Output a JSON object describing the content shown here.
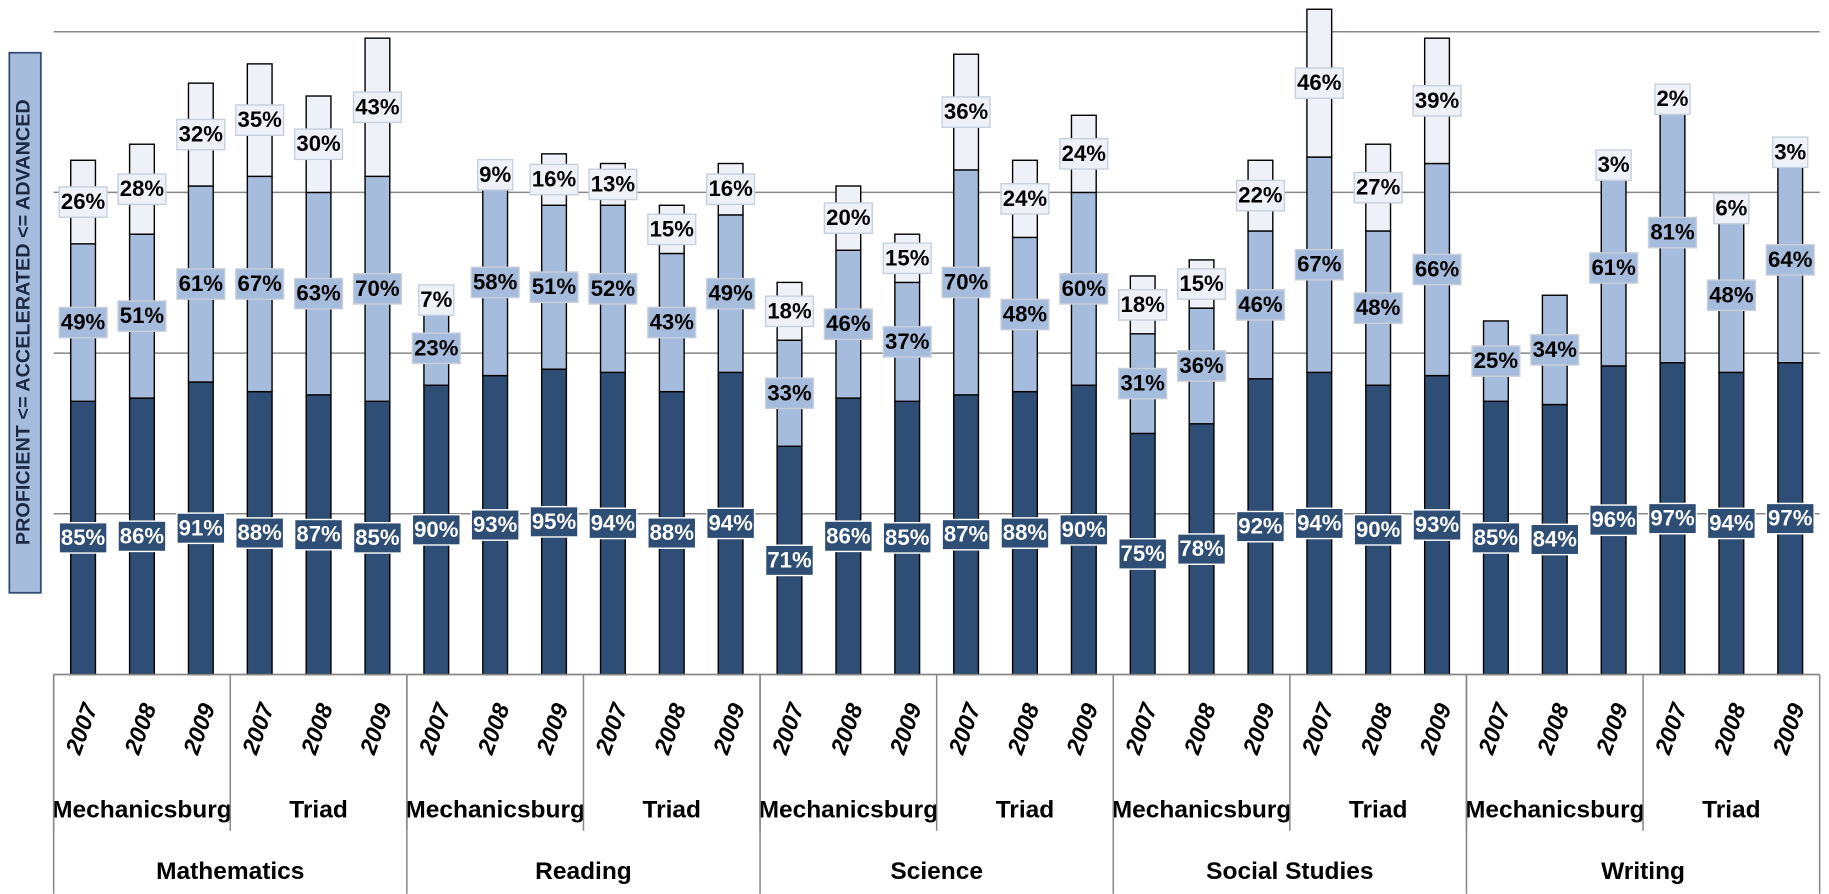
{
  "chart_data": {
    "type": "stacked-bar",
    "y_axis_label": "PROFICIENT <= ACCELERATED <= ADVANCED",
    "categories": [
      "2007",
      "2008",
      "2009",
      "2007",
      "2008",
      "2009",
      "2007",
      "2008",
      "2009",
      "2007",
      "2008",
      "2009",
      "2007",
      "2008",
      "2009",
      "2007",
      "2008",
      "2009",
      "2007",
      "2008",
      "2009",
      "2007",
      "2008",
      "2009",
      "2007",
      "2008",
      "2009",
      "2007",
      "2008",
      "2009"
    ],
    "districts": [
      "Mechanicsburg",
      "Triad",
      "Mechanicsburg",
      "Triad",
      "Mechanicsburg",
      "Triad",
      "Mechanicsburg",
      "Triad",
      "Mechanicsburg",
      "Triad"
    ],
    "subjects": [
      "Mathematics",
      "Reading",
      "Science",
      "Social Studies",
      "Writing"
    ],
    "ylim": [
      0,
      200
    ],
    "yticks": [
      0,
      50,
      100,
      150,
      200
    ],
    "grid": true,
    "series": [
      {
        "name": "Proficient",
        "color": "#2e4e76",
        "label_color": "#ffffff",
        "values": [
          85,
          86,
          91,
          88,
          87,
          85,
          90,
          93,
          95,
          94,
          88,
          94,
          71,
          86,
          85,
          87,
          88,
          90,
          75,
          78,
          92,
          94,
          90,
          93,
          85,
          84,
          96,
          97,
          94,
          97
        ],
        "value_labels": [
          "85%",
          "86%",
          "91%",
          "88%",
          "87%",
          "85%",
          "90%",
          "93%",
          "95%",
          "94%",
          "88%",
          "94%",
          "71%",
          "86%",
          "85%",
          "87%",
          "88%",
          "90%",
          "75%",
          "78%",
          "92%",
          "94%",
          "90%",
          "93%",
          "85%",
          "84%",
          "96%",
          "97%",
          "94%",
          "97%"
        ]
      },
      {
        "name": "Accelerated",
        "color": "#a6bcdc",
        "label_color": "#000000",
        "values": [
          49,
          51,
          61,
          67,
          63,
          70,
          23,
          58,
          51,
          52,
          43,
          49,
          33,
          46,
          37,
          70,
          48,
          60,
          31,
          36,
          46,
          67,
          48,
          66,
          25,
          34,
          61,
          81,
          48,
          64
        ],
        "value_labels": [
          "49%",
          "51%",
          "61%",
          "67%",
          "63%",
          "70%",
          "23%",
          "58%",
          "51%",
          "52%",
          "43%",
          "49%",
          "33%",
          "46%",
          "37%",
          "70%",
          "48%",
          "60%",
          "31%",
          "36%",
          "46%",
          "67%",
          "48%",
          "66%",
          "25%",
          "34%",
          "61%",
          "81%",
          "48%",
          "64%"
        ]
      },
      {
        "name": "Advanced",
        "color": "#eef2f8",
        "label_color": "#000000",
        "values": [
          26,
          28,
          32,
          35,
          30,
          43,
          7,
          9,
          16,
          13,
          15,
          16,
          18,
          20,
          15,
          36,
          24,
          24,
          18,
          15,
          22,
          46,
          27,
          39,
          null,
          null,
          3,
          2,
          6,
          3
        ],
        "value_labels": [
          "26%",
          "28%",
          "32%",
          "35%",
          "30%",
          "43%",
          "7%",
          "9%",
          "16%",
          "13%",
          "15%",
          "16%",
          "18%",
          "20%",
          "15%",
          "36%",
          "24%",
          "24%",
          "18%",
          "15%",
          "22%",
          "46%",
          "27%",
          "39%",
          null,
          null,
          "3%",
          "2%",
          "6%",
          "3%"
        ]
      }
    ]
  }
}
